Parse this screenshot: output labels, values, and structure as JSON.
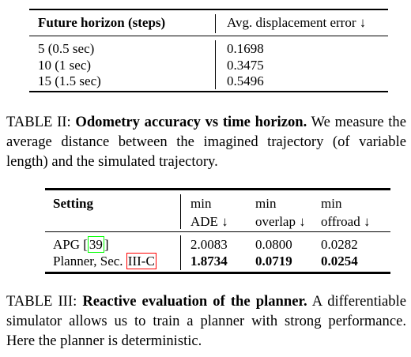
{
  "table_ii": {
    "headers": [
      "Future horizon (steps)",
      "Avg. displacement error ↓"
    ],
    "rows": [
      [
        "5 (0.5 sec)",
        "0.1698"
      ],
      [
        "10 (1 sec)",
        "0.3475"
      ],
      [
        "15 (1.5 sec)",
        "0.5496"
      ]
    ],
    "caption": {
      "label": "TABLE II:",
      "title": "Odometry accuracy vs time horizon.",
      "text": "We measure the average distance between the imagined trajectory (of variable length) and the simulated trajectory."
    }
  },
  "table_iii": {
    "headers": [
      [
        "Setting"
      ],
      [
        "min",
        "ADE ↓"
      ],
      [
        "min",
        "overlap ↓"
      ],
      [
        "min",
        "offroad ↓"
      ]
    ],
    "rows": [
      {
        "setting": [
          "APG [",
          "39",
          "]"
        ],
        "values": [
          "2.0083",
          "0.0800",
          "0.0282"
        ]
      },
      {
        "setting": [
          "Planner, Sec. ",
          "III-C",
          ""
        ],
        "values": [
          "1.8734",
          "0.0719",
          "0.0254"
        ]
      }
    ],
    "caption": {
      "label": "TABLE III:",
      "title": "Reactive evaluation of the planner.",
      "text": "A differentiable simulator allows us to train a planner with strong performance. Here the planner is deterministic."
    }
  }
}
